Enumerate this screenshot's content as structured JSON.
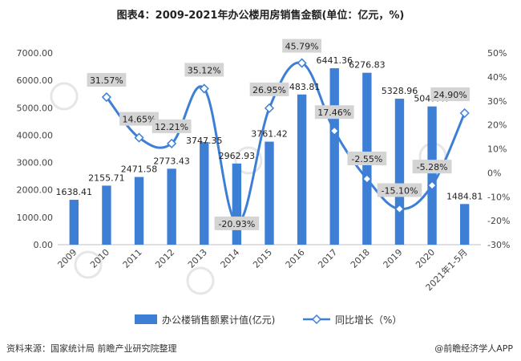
{
  "title": "图表4：2009-2021年办公楼用房销售金额(单位：亿元，%)",
  "source": "资料来源：国家统计局 前瞻产业研究院整理",
  "brand": "@前瞻经济学人APP",
  "colors": {
    "bar": "#3e7fd6",
    "line": "#3e7fd6",
    "label_bg": "#d4d4d4"
  },
  "chart_data": {
    "type": "bar",
    "title": "图表4：2009-2021年办公楼用房销售金额(单位：亿元，%)",
    "categories": [
      "2009",
      "2010",
      "2011",
      "2012",
      "2013",
      "2014",
      "2015",
      "2016",
      "2017",
      "2018",
      "2019",
      "2020",
      "2021年1-5月"
    ],
    "series": [
      {
        "name": "办公楼销售额累计值(亿元)",
        "type": "bar",
        "axis": "left",
        "values": [
          1638.41,
          2155.71,
          2471.58,
          2773.43,
          3747.35,
          2962.93,
          3761.42,
          5483.81,
          6441.36,
          6276.83,
          5328.96,
          5047.47,
          1484.81
        ],
        "labels": [
          "1638.41",
          "2155.71",
          "2471.58",
          "2773.43",
          "3747.35",
          "2962.93",
          "3761.42",
          "5483.81",
          "6441.36",
          "6276.83",
          "5328.96",
          "5047.47",
          "1484.81"
        ]
      },
      {
        "name": "同比增长（%）",
        "type": "line",
        "axis": "right",
        "x": [
          "2010",
          "2011",
          "2012",
          "2013",
          "2014",
          "2015",
          "2016",
          "2017",
          "2018",
          "2019",
          "2020",
          "2021年1-5月"
        ],
        "values": [
          31.57,
          14.65,
          12.21,
          35.12,
          -20.93,
          26.95,
          45.79,
          17.46,
          -2.55,
          -15.1,
          -5.28,
          24.9
        ],
        "labels": [
          "31.57%",
          "14.65%",
          "12.21%",
          "35.12%",
          "-20.93%",
          "26.95%",
          "45.79%",
          "17.46%",
          "-2.55%",
          "-15.10%",
          "-5.28%",
          "24.90%"
        ]
      }
    ],
    "y_left": {
      "min": 0,
      "max": 7000,
      "step": 1000,
      "tick_labels": [
        "0.00",
        "1000.00",
        "2000.00",
        "3000.00",
        "4000.00",
        "5000.00",
        "6000.00",
        "7000.00"
      ]
    },
    "y_right": {
      "min": -30,
      "max": 50,
      "step": 10,
      "tick_labels": [
        "-30%",
        "-20%",
        "-10%",
        "0%",
        "10%",
        "20%",
        "30%",
        "40%",
        "50%"
      ]
    },
    "legend_position": "bottom",
    "grid": false
  }
}
